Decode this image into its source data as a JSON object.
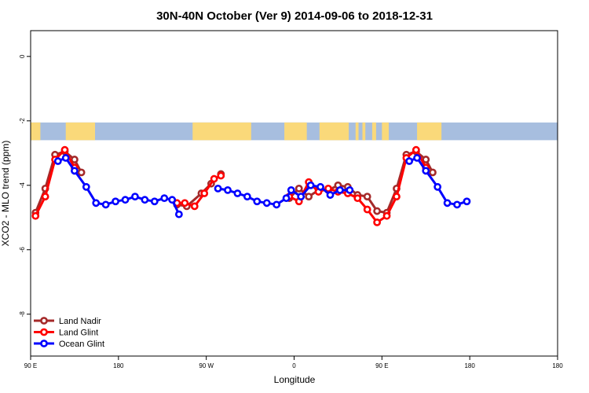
{
  "chart_data": {
    "type": "line",
    "title": "30N-40N October (Ver 9)   2014-09-06 to 2018-12-31",
    "xlabel": "Longitude",
    "ylabel": "XCO2 - MLO trend (ppm)",
    "xlim": [
      0,
      540
    ],
    "ylim": [
      -9.3,
      0.8
    ],
    "x_ticks": [
      {
        "value": 0,
        "label": "90 E"
      },
      {
        "value": 90,
        "label": "180"
      },
      {
        "value": 180,
        "label": "90 W"
      },
      {
        "value": 270,
        "label": "0"
      },
      {
        "value": 360,
        "label": "90 E"
      },
      {
        "value": 450,
        "label": "180"
      }
    ],
    "y_ticks": [
      0,
      -2,
      -4,
      -6,
      -8
    ],
    "legend_position": "bottom-left",
    "map_band": {
      "y_top": -2.05,
      "y_bottom": -2.6,
      "ocean_color": "#a7bedf",
      "land_color": "#fad97a"
    },
    "series": [
      {
        "name": "Land Nadir",
        "color": "#a52a2a",
        "points": [
          [
            5,
            -4.85
          ],
          [
            15,
            -4.1
          ],
          [
            25,
            -3.05
          ],
          [
            35,
            -2.95
          ],
          [
            45,
            -3.2
          ],
          [
            52,
            -3.6
          ],
          [
            150,
            -4.6
          ],
          [
            160,
            -4.65
          ],
          [
            175,
            -4.25
          ],
          [
            185,
            -3.95
          ],
          [
            195,
            -3.65
          ],
          [
            265,
            -4.4
          ],
          [
            275,
            -4.1
          ],
          [
            285,
            -4.35
          ],
          [
            295,
            -4.15
          ],
          [
            305,
            -4.15
          ],
          [
            315,
            -4.0
          ],
          [
            325,
            -4.05
          ],
          [
            335,
            -4.3
          ],
          [
            345,
            -4.35
          ],
          [
            355,
            -4.8
          ],
          [
            365,
            -4.85
          ],
          [
            375,
            -4.1
          ],
          [
            385,
            -3.05
          ],
          [
            395,
            -2.95
          ],
          [
            405,
            -3.2
          ],
          [
            412,
            -3.6
          ]
        ]
      },
      {
        "name": "Land Glint",
        "color": "#ff0000",
        "points": [
          [
            5,
            -4.95
          ],
          [
            15,
            -4.35
          ],
          [
            25,
            -3.2
          ],
          [
            35,
            -2.9
          ],
          [
            45,
            -3.45
          ],
          [
            150,
            -4.55
          ],
          [
            158,
            -4.55
          ],
          [
            168,
            -4.65
          ],
          [
            178,
            -4.25
          ],
          [
            188,
            -3.8
          ],
          [
            195,
            -3.7
          ],
          [
            265,
            -4.35
          ],
          [
            275,
            -4.5
          ],
          [
            285,
            -3.9
          ],
          [
            295,
            -4.2
          ],
          [
            305,
            -4.1
          ],
          [
            315,
            -4.2
          ],
          [
            325,
            -4.25
          ],
          [
            335,
            -4.4
          ],
          [
            345,
            -4.75
          ],
          [
            355,
            -5.15
          ],
          [
            365,
            -4.95
          ],
          [
            375,
            -4.35
          ],
          [
            385,
            -3.15
          ],
          [
            395,
            -2.9
          ],
          [
            405,
            -3.45
          ]
        ]
      },
      {
        "name": "Ocean Glint",
        "color": "#0000ff",
        "points": [
          [
            28,
            -3.25
          ],
          [
            36,
            -3.15
          ],
          [
            45,
            -3.55
          ],
          [
            57,
            -4.05
          ],
          [
            67,
            -4.55
          ],
          [
            77,
            -4.6
          ],
          [
            87,
            -4.5
          ],
          [
            97,
            -4.45
          ],
          [
            107,
            -4.35
          ],
          [
            117,
            -4.45
          ],
          [
            127,
            -4.5
          ],
          [
            137,
            -4.4
          ],
          [
            145,
            -4.45
          ],
          [
            152,
            -4.9
          ],
          [
            192,
            -4.1
          ],
          [
            202,
            -4.15
          ],
          [
            212,
            -4.25
          ],
          [
            222,
            -4.35
          ],
          [
            232,
            -4.5
          ],
          [
            242,
            -4.55
          ],
          [
            252,
            -4.6
          ],
          [
            262,
            -4.4
          ],
          [
            267,
            -4.15
          ],
          [
            277,
            -4.35
          ],
          [
            287,
            -4.0
          ],
          [
            297,
            -4.05
          ],
          [
            307,
            -4.3
          ],
          [
            317,
            -4.15
          ],
          [
            327,
            -4.15
          ],
          [
            388,
            -3.25
          ],
          [
            396,
            -3.15
          ],
          [
            405,
            -3.55
          ],
          [
            417,
            -4.05
          ],
          [
            427,
            -4.55
          ],
          [
            437,
            -4.6
          ],
          [
            447,
            -4.5
          ]
        ]
      }
    ]
  }
}
